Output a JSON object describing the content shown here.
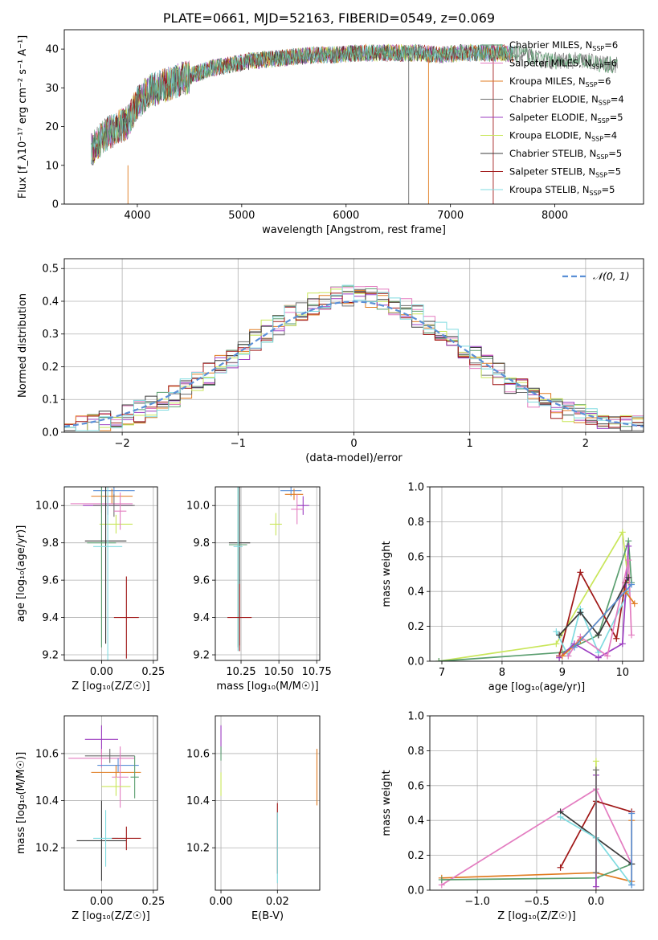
{
  "figure_title": "PLATE=0661, MJD=52163, FIBERID=0549, z=0.069",
  "colors": {
    "chabrier_miles": "#5a9e6f",
    "salpeter_miles": "#e37cc0",
    "kroupa_miles": "#e07b20",
    "chabrier_elodie": "#6f6f6f",
    "salpeter_elodie": "#9b3cc0",
    "kroupa_elodie": "#c9e65a",
    "chabrier_stelib": "#3b3b3b",
    "salpeter_stelib": "#a01818",
    "kroupa_stelib": "#7fdbe0",
    "gauss": "#5a8fd6",
    "grid": "#b0b0b0"
  },
  "chart_data": [
    {
      "id": "spectrum",
      "type": "line",
      "title": "PLATE=0661, MJD=52163, FIBERID=0549, z=0.069",
      "xlabel": "wavelength [Angstrom, rest frame]",
      "ylabel": "Flux [f_λ10⁻¹⁷ erg cm⁻² s⁻¹ A⁻¹]",
      "xlim": [
        3300,
        8850
      ],
      "ylim": [
        0,
        45
      ],
      "xticks": [
        4000,
        5000,
        6000,
        7000,
        8000
      ],
      "yticks": [
        0,
        10,
        20,
        30,
        40
      ],
      "legend_position": "top-right",
      "spectrum_anchor_points": {
        "x": [
          3560,
          3700,
          3900,
          4000,
          4100,
          4300,
          4500,
          4700,
          4900,
          5100,
          5300,
          5500,
          5700,
          5900,
          6100,
          6300,
          6500,
          6700,
          6900,
          7100,
          7300,
          7500,
          7700,
          7900,
          8100,
          8300,
          8500,
          8600
        ],
        "y": [
          14,
          18,
          21,
          26,
          29,
          31,
          33,
          35,
          36,
          37,
          37.5,
          38,
          38.5,
          38.5,
          39,
          39,
          39,
          39,
          38.5,
          39,
          39,
          39,
          38.5,
          37,
          37,
          37,
          36,
          36
        ]
      },
      "series": [
        {
          "name": "Chabrier MILES, N",
          "sub": "SSP",
          "suffix": "=6",
          "color_key": "chabrier_miles"
        },
        {
          "name": "Salpeter MILES, N",
          "sub": "SSP",
          "suffix": "=6",
          "color_key": "salpeter_miles"
        },
        {
          "name": "Kroupa MILES, N",
          "sub": "SSP",
          "suffix": "=6",
          "color_key": "kroupa_miles"
        },
        {
          "name": "Chabrier ELODIE, N",
          "sub": "SSP",
          "suffix": "=4",
          "color_key": "chabrier_elodie"
        },
        {
          "name": "Salpeter ELODIE, N",
          "sub": "SSP",
          "suffix": "=5",
          "color_key": "salpeter_elodie"
        },
        {
          "name": "Kroupa ELODIE, N",
          "sub": "SSP",
          "suffix": "=4",
          "color_key": "kroupa_elodie"
        },
        {
          "name": "Chabrier STELIB, N",
          "sub": "SSP",
          "suffix": "=5",
          "color_key": "chabrier_stelib"
        },
        {
          "name": "Salpeter STELIB, N",
          "sub": "SSP",
          "suffix": "=5",
          "color_key": "salpeter_stelib"
        },
        {
          "name": "Kroupa STELIB, N",
          "sub": "SSP",
          "suffix": "=5",
          "color_key": "kroupa_stelib"
        }
      ],
      "dropouts": [
        {
          "x": 3910,
          "y0": 10,
          "color_key": "kroupa_miles"
        },
        {
          "x": 6600,
          "y0": 38,
          "color_key": "chabrier_elodie"
        },
        {
          "x": 6790,
          "y0": 38,
          "color_key": "kroupa_miles"
        },
        {
          "x": 7410,
          "y0": 38,
          "color_key": "salpeter_stelib"
        }
      ]
    },
    {
      "id": "residuals",
      "type": "line",
      "xlabel": "(data-model)/error",
      "ylabel": "Normed distribution",
      "xlim": [
        -2.5,
        2.5
      ],
      "ylim": [
        0,
        0.53
      ],
      "xticks": [
        -2,
        -1,
        0,
        1,
        2
      ],
      "yticks": [
        0.0,
        0.1,
        0.2,
        0.3,
        0.4,
        0.5
      ],
      "gauss_label": "𝒩(0, 1)",
      "legend_position": "top-right",
      "bin_width": 0.1
    },
    {
      "id": "age_vs_z",
      "type": "scatter",
      "xlabel": "Z [log₁₀(Z/Z☉)]",
      "ylabel": "age  [log₁₀(age/yr)]",
      "xlim": [
        -0.18,
        0.27
      ],
      "ylim": [
        9.17,
        10.1
      ],
      "xticks": [
        0.0,
        0.25
      ],
      "yticks": [
        9.2,
        9.4,
        9.6,
        9.8,
        10.0
      ],
      "points": [
        {
          "x": 0.06,
          "y": 10.08,
          "xerr": 0.1,
          "yerr": 0.03,
          "c": "gauss"
        },
        {
          "x": 0.05,
          "y": 10.05,
          "xerr": 0.1,
          "yerr": 0.04,
          "c": "kroupa_miles"
        },
        {
          "x": 0.0,
          "y": 10.01,
          "xerr": 0.15,
          "yerr": 0.05,
          "c": "salpeter_miles"
        },
        {
          "x": 0.03,
          "y": 10.0,
          "xerr": 0.12,
          "yerr": 0.05,
          "c": "salpeter_elodie"
        },
        {
          "x": 0.06,
          "y": 10.0,
          "xerr": 0.1,
          "yerr": 0.06,
          "c": "chabrier_elodie"
        },
        {
          "x": 0.07,
          "y": 9.9,
          "xerr": 0.08,
          "yerr": 0.05,
          "c": "kroupa_elodie"
        },
        {
          "x": 0.09,
          "y": 9.97,
          "xerr": 0.03,
          "yerr": 0.1,
          "c": "salpeter_miles"
        },
        {
          "x": 0.0,
          "y": 9.8,
          "xerr": 0.07,
          "yerr": 0.56,
          "c": "chabrier_miles"
        },
        {
          "x": 0.02,
          "y": 9.81,
          "xerr": 0.1,
          "yerr": 0.55,
          "c": "chabrier_stelib"
        },
        {
          "x": 0.03,
          "y": 9.78,
          "xerr": 0.07,
          "yerr": 0.62,
          "c": "kroupa_stelib"
        },
        {
          "x": 0.12,
          "y": 9.4,
          "xerr": 0.06,
          "yerr": 0.22,
          "c": "salpeter_stelib"
        }
      ]
    },
    {
      "id": "age_vs_mass",
      "type": "scatter",
      "xlabel": "mass [log₁₀(M/M☉)]",
      "ylabel": "",
      "xlim": [
        10.08,
        10.77
      ],
      "ylim": [
        9.17,
        10.1
      ],
      "xticks": [
        10.25,
        10.5,
        10.75
      ],
      "yticks": [
        9.2,
        9.4,
        9.6,
        9.8,
        10.0
      ],
      "points": [
        {
          "x": 10.58,
          "y": 10.08,
          "xerr": 0.07,
          "yerr": 0.03,
          "c": "gauss"
        },
        {
          "x": 10.6,
          "y": 10.06,
          "xerr": 0.06,
          "yerr": 0.03,
          "c": "kroupa_miles"
        },
        {
          "x": 10.66,
          "y": 10.0,
          "xerr": 0.04,
          "yerr": 0.05,
          "c": "salpeter_elodie"
        },
        {
          "x": 10.62,
          "y": 9.98,
          "xerr": 0.04,
          "yerr": 0.08,
          "c": "salpeter_miles"
        },
        {
          "x": 10.48,
          "y": 9.9,
          "xerr": 0.04,
          "yerr": 0.06,
          "c": "kroupa_elodie"
        },
        {
          "x": 10.24,
          "y": 9.8,
          "xerr": 0.07,
          "yerr": 0.55,
          "c": "chabrier_stelib"
        },
        {
          "x": 10.23,
          "y": 9.79,
          "xerr": 0.06,
          "yerr": 0.55,
          "c": "chabrier_miles"
        },
        {
          "x": 10.23,
          "y": 9.78,
          "xerr": 0.03,
          "yerr": 0.56,
          "c": "kroupa_stelib"
        },
        {
          "x": 10.24,
          "y": 9.4,
          "xerr": 0.08,
          "yerr": 0.18,
          "c": "salpeter_stelib"
        }
      ]
    },
    {
      "id": "massweight_vs_age",
      "type": "line",
      "xlabel": "age  [log₁₀(age/yr)]",
      "ylabel": "mass weight",
      "xlim": [
        6.8,
        10.35
      ],
      "ylim": [
        0,
        1.0
      ],
      "xticks": [
        7,
        8,
        9,
        10
      ],
      "yticks": [
        0.0,
        0.2,
        0.4,
        0.6,
        0.8,
        1.0
      ],
      "series": [
        {
          "c": "kroupa_elodie",
          "x": [
            6.95,
            8.9,
            10.0,
            10.1
          ],
          "y": [
            0.0,
            0.1,
            0.74,
            0.45
          ]
        },
        {
          "c": "chabrier_miles",
          "x": [
            6.95,
            9.0,
            9.6,
            10.1,
            10.15
          ],
          "y": [
            0.0,
            0.05,
            0.15,
            0.69,
            0.45
          ]
        },
        {
          "c": "salpeter_stelib",
          "x": [
            8.95,
            9.3,
            9.9,
            10.05
          ],
          "y": [
            0.03,
            0.51,
            0.13,
            0.45
          ]
        },
        {
          "c": "kroupa_stelib",
          "x": [
            8.9,
            9.1,
            9.3,
            9.6,
            10.1
          ],
          "y": [
            0.17,
            0.03,
            0.3,
            0.05,
            0.4
          ]
        },
        {
          "c": "salpeter_elodie",
          "x": [
            8.95,
            9.2,
            9.6,
            10.0,
            10.1
          ],
          "y": [
            0.02,
            0.1,
            0.02,
            0.1,
            0.66
          ]
        },
        {
          "c": "salpeter_miles",
          "x": [
            9.1,
            9.3,
            9.75,
            10.1,
            10.15
          ],
          "y": [
            0.03,
            0.14,
            0.03,
            0.58,
            0.15
          ]
        },
        {
          "c": "kroupa_miles",
          "x": [
            9.0,
            9.3,
            10.05,
            10.2
          ],
          "y": [
            0.03,
            0.12,
            0.4,
            0.33
          ]
        },
        {
          "c": "chabrier_stelib",
          "x": [
            8.95,
            9.3,
            9.6,
            10.1
          ],
          "y": [
            0.15,
            0.28,
            0.15,
            0.48
          ]
        },
        {
          "c": "gauss",
          "x": [
            9.2,
            10.15
          ],
          "y": [
            0.08,
            0.44
          ]
        }
      ]
    },
    {
      "id": "mass_vs_z",
      "type": "scatter",
      "xlabel": "Z [log₁₀(Z/Z☉)]",
      "ylabel": "mass [log₁₀(M/M☉)]",
      "xlim": [
        -0.18,
        0.27
      ],
      "ylim": [
        10.02,
        10.76
      ],
      "xticks": [
        0.0,
        0.25
      ],
      "yticks": [
        10.2,
        10.4,
        10.6
      ],
      "points": [
        {
          "x": 0.0,
          "y": 10.66,
          "xerr": 0.08,
          "yerr": 0.06,
          "c": "salpeter_elodie"
        },
        {
          "x": 0.0,
          "y": 10.58,
          "xerr": 0.16,
          "yerr": 0.04,
          "c": "salpeter_miles"
        },
        {
          "x": 0.04,
          "y": 10.59,
          "xerr": 0.12,
          "yerr": 0.03,
          "c": "chabrier_elodie"
        },
        {
          "x": 0.08,
          "y": 10.55,
          "xerr": 0.1,
          "yerr": 0.03,
          "c": "gauss"
        },
        {
          "x": 0.07,
          "y": 10.52,
          "xerr": 0.12,
          "yerr": 0.03,
          "c": "kroupa_miles"
        },
        {
          "x": 0.09,
          "y": 10.5,
          "xerr": 0.04,
          "yerr": 0.13,
          "c": "salpeter_miles"
        },
        {
          "x": 0.07,
          "y": 10.46,
          "xerr": 0.07,
          "yerr": 0.04,
          "c": "kroupa_elodie"
        },
        {
          "x": 0.16,
          "y": 10.5,
          "xerr": 0.02,
          "yerr": 0.09,
          "c": "chabrier_miles"
        },
        {
          "x": 0.0,
          "y": 10.23,
          "xerr": 0.12,
          "yerr": 0.17,
          "c": "chabrier_stelib"
        },
        {
          "x": 0.02,
          "y": 10.24,
          "xerr": 0.06,
          "yerr": 0.12,
          "c": "kroupa_stelib"
        },
        {
          "x": 0.12,
          "y": 10.24,
          "xerr": 0.07,
          "yerr": 0.05,
          "c": "salpeter_stelib"
        }
      ]
    },
    {
      "id": "mass_vs_ebv",
      "type": "scatter",
      "xlabel": "E(B-V)",
      "ylabel": "",
      "xlim": [
        -0.002,
        0.035
      ],
      "ylim": [
        10.02,
        10.76
      ],
      "xticks": [
        0.0,
        0.02
      ],
      "yticks": [
        10.2,
        10.4,
        10.6
      ],
      "points": [
        {
          "x": 0.0,
          "y": 10.66,
          "xerr": 0.0,
          "yerr": 0.06,
          "c": "salpeter_elodie"
        },
        {
          "x": 0.0,
          "y": 10.47,
          "xerr": 0.0,
          "yerr": 0.05,
          "c": "kroupa_elodie"
        },
        {
          "x": 0.0,
          "y": 10.6,
          "xerr": 0.0,
          "yerr": 0.03,
          "c": "chabrier_miles"
        },
        {
          "x": 0.02,
          "y": 10.24,
          "xerr": 0.0,
          "yerr": 0.15,
          "c": "salpeter_stelib"
        },
        {
          "x": 0.02,
          "y": 10.2,
          "xerr": 0.0,
          "yerr": 0.15,
          "c": "kroupa_stelib"
        },
        {
          "x": 0.034,
          "y": 10.5,
          "xerr": 0.0,
          "yerr": 0.12,
          "c": "kroupa_miles"
        }
      ]
    },
    {
      "id": "massweight_vs_z",
      "type": "line",
      "xlabel": "Z [log₁₀(Z/Z☉)]",
      "ylabel": "mass weight",
      "xlim": [
        -1.4,
        0.4
      ],
      "ylim": [
        0,
        1.0
      ],
      "xticks": [
        -1.0,
        -0.5,
        0.0
      ],
      "yticks": [
        0.0,
        0.2,
        0.4,
        0.6,
        0.8,
        1.0
      ],
      "series": [
        {
          "c": "kroupa_miles",
          "x": [
            -1.3,
            0.0,
            0.3,
            0.3
          ],
          "y": [
            0.07,
            0.1,
            0.05,
            0.4
          ]
        },
        {
          "c": "salpeter_miles",
          "x": [
            -1.3,
            0.0,
            0.3
          ],
          "y": [
            0.03,
            0.58,
            0.15
          ]
        },
        {
          "c": "chabrier_miles",
          "x": [
            -1.3,
            0.0,
            0.3
          ],
          "y": [
            0.06,
            0.07,
            0.15
          ]
        },
        {
          "c": "salpeter_stelib",
          "x": [
            -0.3,
            0.0,
            0.3
          ],
          "y": [
            0.13,
            0.51,
            0.45
          ]
        },
        {
          "c": "chabrier_stelib",
          "x": [
            -0.3,
            0.0,
            0.3
          ],
          "y": [
            0.45,
            0.3,
            0.15
          ]
        },
        {
          "c": "kroupa_stelib",
          "x": [
            -0.3,
            0.0,
            0.3
          ],
          "y": [
            0.42,
            0.3,
            0.03
          ]
        },
        {
          "c": "kroupa_elodie",
          "x": [
            0.0,
            0.0
          ],
          "y": [
            0.0,
            0.74
          ]
        },
        {
          "c": "gauss",
          "x": [
            0.3,
            0.3
          ],
          "y": [
            0.03,
            0.44
          ]
        },
        {
          "c": "salpeter_elodie",
          "x": [
            0.0,
            0.0
          ],
          "y": [
            0.02,
            0.66
          ]
        },
        {
          "c": "chabrier_elodie",
          "x": [
            0.0,
            0.0
          ],
          "y": [
            0.1,
            0.69
          ]
        }
      ]
    }
  ]
}
